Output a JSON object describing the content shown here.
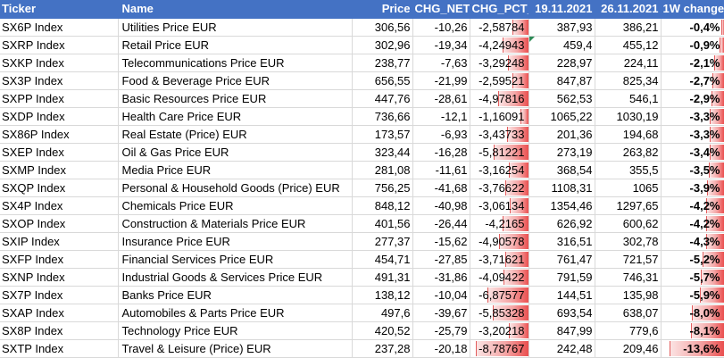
{
  "headers": [
    "Ticker",
    "Name",
    "Price",
    "CHG_NET",
    "CHG_PCT_",
    "19.11.2021",
    "26.11.2021",
    "1W change"
  ],
  "rows": [
    {
      "ticker": "SX6P Index",
      "name": "Utilities Price EUR",
      "price": "306,56",
      "chg_net": "-10,26",
      "chg_pct": "-2,58784",
      "pct_val": 2.58784,
      "d1": "387,93",
      "d2": "386,21",
      "w1": "-0,4%",
      "w1_val": 0.4
    },
    {
      "ticker": "SXRP Index",
      "name": "Retail Price EUR",
      "price": "302,96",
      "chg_net": "-19,34",
      "chg_pct": "-4,24943",
      "pct_val": 4.24943,
      "d1": "459,4",
      "d2": "455,12",
      "w1": "-0,9%",
      "w1_val": 0.9
    },
    {
      "ticker": "SXKP Index",
      "name": "Telecommunications Price EUR",
      "price": "238,77",
      "chg_net": "-7,63",
      "chg_pct": "-3,29248",
      "pct_val": 3.29248,
      "d1": "228,97",
      "d2": "224,11",
      "w1": "-2,1%",
      "w1_val": 2.1
    },
    {
      "ticker": "SX3P Index",
      "name": "Food & Beverage Price EUR",
      "price": "656,55",
      "chg_net": "-21,99",
      "chg_pct": "-2,59521",
      "pct_val": 2.59521,
      "d1": "847,87",
      "d2": "825,34",
      "w1": "-2,7%",
      "w1_val": 2.7
    },
    {
      "ticker": "SXPP Index",
      "name": "Basic Resources Price EUR",
      "price": "447,76",
      "chg_net": "-28,61",
      "chg_pct": "-4,97816",
      "pct_val": 4.97816,
      "d1": "562,53",
      "d2": "546,1",
      "w1": "-2,9%",
      "w1_val": 2.9
    },
    {
      "ticker": "SXDP Index",
      "name": "Health Care Price EUR",
      "price": "736,66",
      "chg_net": "-12,1",
      "chg_pct": "-1,16091",
      "pct_val": 1.16091,
      "d1": "1065,22",
      "d2": "1030,19",
      "w1": "-3,3%",
      "w1_val": 3.3
    },
    {
      "ticker": "SX86P Index",
      "name": "Real Estate (Price) EUR",
      "price": "173,57",
      "chg_net": "-6,93",
      "chg_pct": "-3,43733",
      "pct_val": 3.43733,
      "d1": "201,36",
      "d2": "194,68",
      "w1": "-3,3%",
      "w1_val": 3.3
    },
    {
      "ticker": "SXEP Index",
      "name": "Oil & Gas Price EUR",
      "price": "323,44",
      "chg_net": "-16,28",
      "chg_pct": "-5,81221",
      "pct_val": 5.81221,
      "d1": "273,19",
      "d2": "263,82",
      "w1": "-3,4%",
      "w1_val": 3.4
    },
    {
      "ticker": "SXMP Index",
      "name": "Media Price EUR",
      "price": "281,08",
      "chg_net": "-11,61",
      "chg_pct": "-3,16254",
      "pct_val": 3.16254,
      "d1": "368,54",
      "d2": "355,5",
      "w1": "-3,5%",
      "w1_val": 3.5
    },
    {
      "ticker": "SXQP Index",
      "name": "Personal & Household Goods (Price) EUR",
      "price": "756,25",
      "chg_net": "-41,68",
      "chg_pct": "-3,76622",
      "pct_val": 3.76622,
      "d1": "1108,31",
      "d2": "1065",
      "w1": "-3,9%",
      "w1_val": 3.9
    },
    {
      "ticker": "SX4P Index",
      "name": "Chemicals Price EUR",
      "price": "848,12",
      "chg_net": "-40,98",
      "chg_pct": "-3,06134",
      "pct_val": 3.06134,
      "d1": "1354,46",
      "d2": "1297,65",
      "w1": "-4,2%",
      "w1_val": 4.2
    },
    {
      "ticker": "SXOP Index",
      "name": "Construction & Materials Price EUR",
      "price": "401,56",
      "chg_net": "-26,44",
      "chg_pct": "-4,2165",
      "pct_val": 4.2165,
      "d1": "626,92",
      "d2": "600,62",
      "w1": "-4,2%",
      "w1_val": 4.2
    },
    {
      "ticker": "SXIP Index",
      "name": "Insurance Price EUR",
      "price": "277,37",
      "chg_net": "-15,62",
      "chg_pct": "-4,90578",
      "pct_val": 4.90578,
      "d1": "316,51",
      "d2": "302,78",
      "w1": "-4,3%",
      "w1_val": 4.3
    },
    {
      "ticker": "SXFP Index",
      "name": "Financial Services Price EUR",
      "price": "454,71",
      "chg_net": "-27,85",
      "chg_pct": "-3,71621",
      "pct_val": 3.71621,
      "d1": "761,47",
      "d2": "721,57",
      "w1": "-5,2%",
      "w1_val": 5.2
    },
    {
      "ticker": "SXNP Index",
      "name": "Industrial Goods & Services Price EUR",
      "price": "491,31",
      "chg_net": "-31,86",
      "chg_pct": "-4,09422",
      "pct_val": 4.09422,
      "d1": "791,59",
      "d2": "746,31",
      "w1": "-5,7%",
      "w1_val": 5.7
    },
    {
      "ticker": "SX7P Index",
      "name": "Banks Price EUR",
      "price": "138,12",
      "chg_net": "-10,04",
      "chg_pct": "-6,87577",
      "pct_val": 6.87577,
      "d1": "144,51",
      "d2": "135,98",
      "w1": "-5,9%",
      "w1_val": 5.9
    },
    {
      "ticker": "SXAP Index",
      "name": "Automobiles & Parts Price EUR",
      "price": "497,6",
      "chg_net": "-39,67",
      "chg_pct": "-5,85328",
      "pct_val": 5.85328,
      "d1": "693,54",
      "d2": "638,07",
      "w1": "-8,0%",
      "w1_val": 8.0
    },
    {
      "ticker": "SX8P Index",
      "name": "Technology Price EUR",
      "price": "420,52",
      "chg_net": "-25,79",
      "chg_pct": "-3,20218",
      "pct_val": 3.20218,
      "d1": "847,99",
      "d2": "779,6",
      "w1": "-8,1%",
      "w1_val": 8.1
    },
    {
      "ticker": "SXTP Index",
      "name": "Travel & Leisure (Price) EUR",
      "price": "237,28",
      "chg_net": "-20,18",
      "chg_pct": "-8,78767",
      "pct_val": 8.78767,
      "d1": "242,48",
      "d2": "209,46",
      "w1": "-13,6%",
      "w1_val": 13.6
    }
  ],
  "colors": {
    "header_bg": "#4472c4",
    "header_text": "#ffffff",
    "bar_red": "#ea4f4f",
    "grid": "#d9d9d9"
  }
}
